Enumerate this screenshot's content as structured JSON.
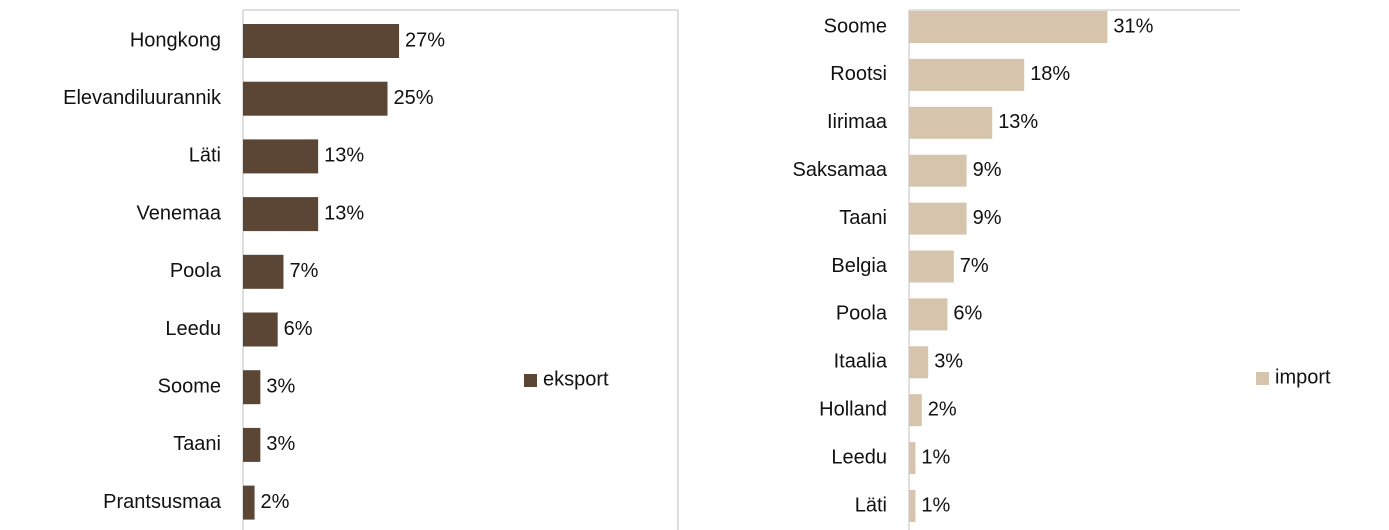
{
  "chart_data": [
    {
      "type": "bar",
      "orientation": "horizontal",
      "categories": [
        "Hongkong",
        "Elevandiluurannik",
        "Läti",
        "Venemaa",
        "Poola",
        "Leedu",
        "Soome",
        "Taani",
        "Prantsusmaa"
      ],
      "series": [
        {
          "name": "eksport",
          "color": "#5b4636",
          "values": [
            27,
            25,
            13,
            13,
            7,
            6,
            3,
            3,
            2
          ],
          "value_labels": [
            "27%",
            "25%",
            "13%",
            "13%",
            "7%",
            "6%",
            "3%",
            "3%",
            "2%"
          ]
        }
      ],
      "legend": "right"
    },
    {
      "type": "bar",
      "orientation": "horizontal",
      "categories": [
        "Soome",
        "Rootsi",
        "Iirimaa",
        "Saksamaa",
        "Taani",
        "Belgia",
        "Poola",
        "Itaalia",
        "Holland",
        "Leedu",
        "Läti"
      ],
      "series": [
        {
          "name": "import",
          "color": "#d6c4ad",
          "values": [
            31,
            18,
            13,
            9,
            9,
            7,
            6,
            3,
            2,
            1,
            1
          ],
          "value_labels": [
            "31%",
            "18%",
            "13%",
            "9%",
            "9%",
            "7%",
            "6%",
            "3%",
            "2%",
            "1%",
            "1%"
          ]
        }
      ],
      "legend": "right"
    }
  ]
}
